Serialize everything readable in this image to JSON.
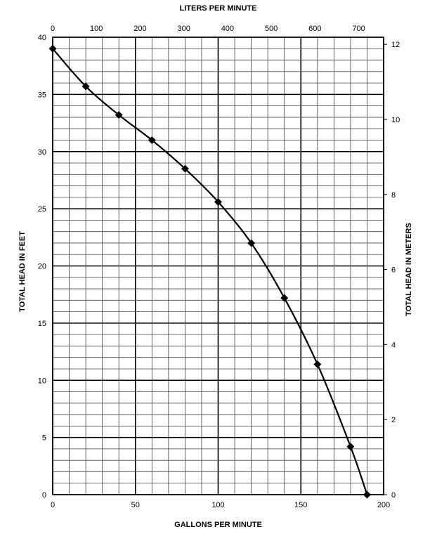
{
  "chart_data": {
    "type": "line",
    "title": "",
    "xlabel": "GALLONS PER MINUTE",
    "ylabel": "TOTAL HEAD IN FEET",
    "x2label": "LITERS PER MINUTE",
    "y2label": "TOTAL HEAD IN METERS",
    "xlim": [
      0,
      200
    ],
    "ylim": [
      0,
      40
    ],
    "x2lim": [
      0,
      757
    ],
    "y2lim": [
      0,
      12.19
    ],
    "x_ticks": [
      0,
      50,
      100,
      150,
      200
    ],
    "y_ticks": [
      0,
      5,
      10,
      15,
      20,
      25,
      30,
      35,
      40
    ],
    "x2_ticks": [
      0,
      100,
      200,
      300,
      400,
      500,
      600,
      700
    ],
    "y2_ticks": [
      0,
      2,
      4,
      6,
      8,
      10,
      12
    ],
    "grid": true,
    "series": [
      {
        "x": [
          0,
          20,
          40,
          60,
          80,
          100,
          120,
          140,
          160,
          180,
          190
        ],
        "y": [
          39,
          35.7,
          33.2,
          31,
          28.5,
          25.6,
          22,
          17.2,
          11.4,
          4.2,
          0
        ]
      }
    ]
  }
}
